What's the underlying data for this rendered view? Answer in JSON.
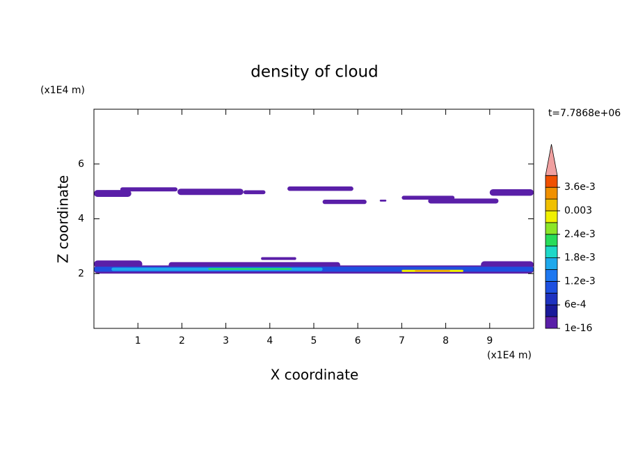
{
  "chart_data": {
    "type": "contour",
    "title": "density of cloud",
    "x_label": "X coordinate",
    "y_label": "Z coordinate",
    "x_unit": "(x1E4 m)",
    "y_unit": "(x1E4 m)",
    "time_label": "t=7.7868e+06",
    "xlim": [
      0,
      10
    ],
    "ylim": [
      0,
      8
    ],
    "xticks": [
      1,
      2,
      3,
      4,
      5,
      6,
      7,
      8,
      9
    ],
    "yticks": [
      2,
      4,
      6
    ],
    "levels": [
      1e-16,
      0.0003,
      0.0006,
      0.0009,
      0.0012,
      0.0015,
      0.0018,
      0.0021,
      0.0024,
      0.0027,
      0.003,
      0.0033,
      0.0036,
      0.0039
    ],
    "colors": [
      "#5a1fa8",
      "#1a1a9a",
      "#1e32c0",
      "#1e50e0",
      "#1e78f0",
      "#1ea8ec",
      "#1ed8c8",
      "#28dc5a",
      "#8ce628",
      "#f0f000",
      "#f0c000",
      "#f09000",
      "#f05000"
    ],
    "over_color": "#f0a0a0",
    "colorbar_ticks": [
      {
        "value": 1e-16,
        "label": "1e-16"
      },
      {
        "value": 0.0006,
        "label": "6e-4"
      },
      {
        "value": 0.0012,
        "label": "1.2e-3"
      },
      {
        "value": 0.0018,
        "label": "1.8e-3"
      },
      {
        "value": 0.0024,
        "label": "2.4e-3"
      },
      0.003,
      {
        "value": 0.0036,
        "label": "3.6e-3"
      }
    ],
    "patches": [
      {
        "x": [
          0,
          0.85
        ],
        "z": [
          4.8,
          5.05
        ],
        "value": 1e-16
      },
      {
        "x": [
          0.6,
          1.9
        ],
        "z": [
          5.0,
          5.15
        ],
        "value": 1e-16
      },
      {
        "x": [
          1.9,
          3.4
        ],
        "z": [
          4.87,
          5.1
        ],
        "value": 1e-16
      },
      {
        "x": [
          3.4,
          3.9
        ],
        "z": [
          4.9,
          5.04
        ],
        "value": 1e-16
      },
      {
        "x": [
          4.4,
          5.9
        ],
        "z": [
          5.02,
          5.18
        ],
        "value": 1e-16
      },
      {
        "x": [
          5.2,
          6.2
        ],
        "z": [
          4.54,
          4.7
        ],
        "value": 1e-16
      },
      {
        "x": [
          6.5,
          6.65
        ],
        "z": [
          4.63,
          4.7
        ],
        "value": 1e-16
      },
      {
        "x": [
          7.0,
          8.2
        ],
        "z": [
          4.7,
          4.84
        ],
        "value": 1e-16
      },
      {
        "x": [
          7.6,
          9.2
        ],
        "z": [
          4.56,
          4.74
        ],
        "value": 1e-16
      },
      {
        "x": [
          9.0,
          10
        ],
        "z": [
          4.84,
          5.08
        ],
        "value": 1e-16
      },
      {
        "x": [
          0,
          1.1
        ],
        "z": [
          2.22,
          2.48
        ],
        "value": 1e-16
      },
      {
        "x": [
          0,
          10
        ],
        "z": [
          2.0,
          2.3
        ],
        "value": 1e-16
      },
      {
        "x": [
          1.7,
          5.6
        ],
        "z": [
          2.22,
          2.42
        ],
        "value": 1e-16
      },
      {
        "x": [
          3.8,
          4.6
        ],
        "z": [
          2.5,
          2.6
        ],
        "value": 1e-16
      },
      {
        "x": [
          8.8,
          10
        ],
        "z": [
          2.2,
          2.45
        ],
        "value": 1e-16
      },
      {
        "x": [
          0,
          10
        ],
        "z": [
          2.07,
          2.25
        ],
        "value": 0.0009
      },
      {
        "x": [
          0.4,
          5.2
        ],
        "z": [
          2.1,
          2.22
        ],
        "value": 0.0015
      },
      {
        "x": [
          2.6,
          4.5
        ],
        "z": [
          2.14,
          2.2
        ],
        "value": 0.0021
      },
      {
        "x": [
          7.0,
          8.4
        ],
        "z": [
          2.06,
          2.14
        ],
        "value": 0.0027
      },
      {
        "x": [
          7.3,
          8.1
        ],
        "z": [
          2.08,
          2.12
        ],
        "value": 0.0033
      }
    ]
  }
}
